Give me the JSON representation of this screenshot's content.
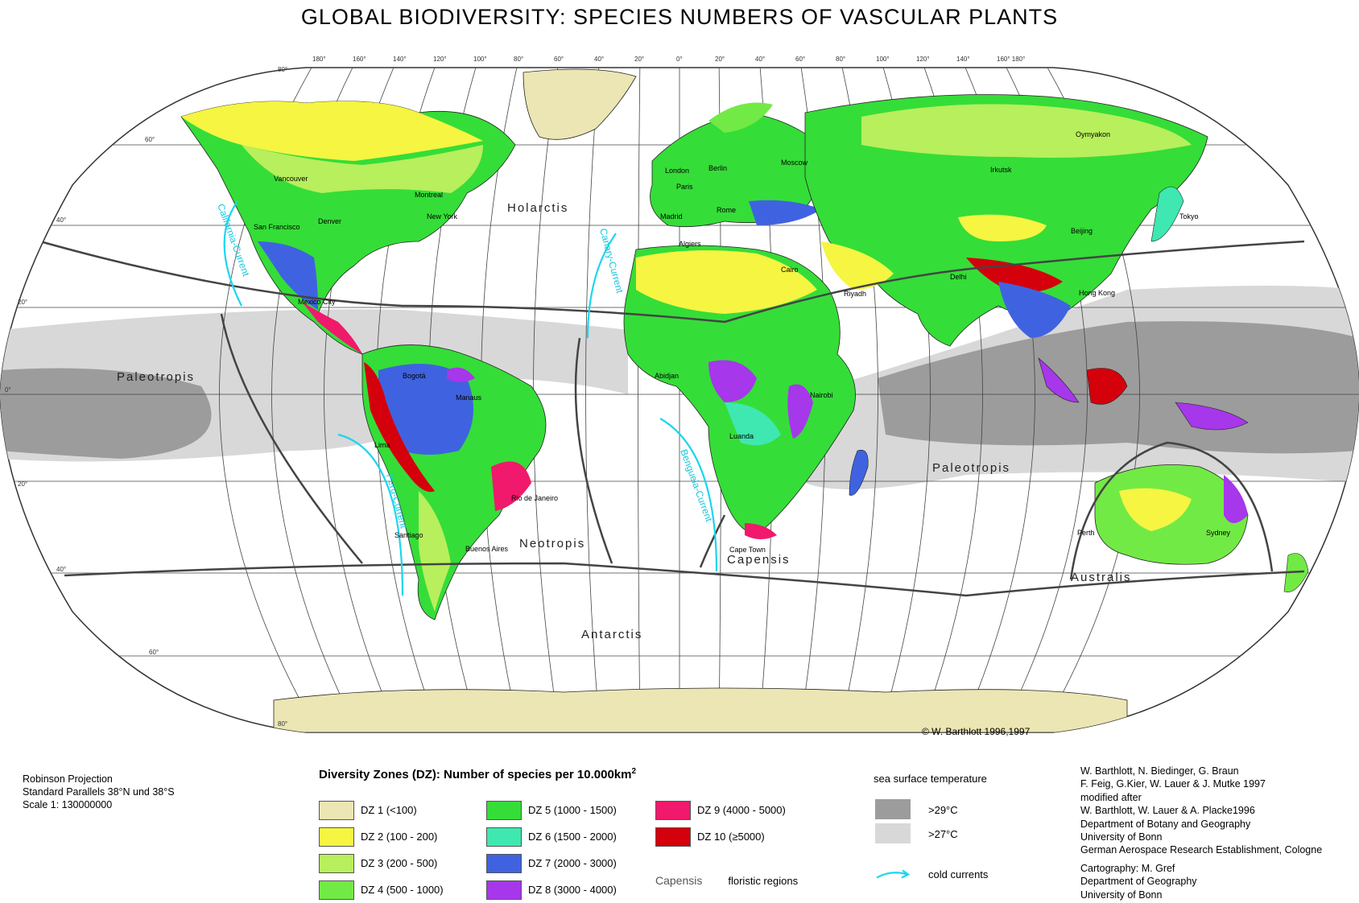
{
  "title": "GLOBAL BIODIVERSITY:  SPECIES NUMBERS OF VASCULAR PLANTS",
  "copyright": "© W. Barthlott 1996,1997",
  "projection": [
    "Robinson Projection",
    "Standard Parallels 38°N und 38°S",
    "Scale 1: 130000000"
  ],
  "legend": {
    "title": "Diversity Zones (DZ): Number of species per 10.000km",
    "title_sup": "2",
    "zones": [
      {
        "label": "DZ  1      (<100)",
        "color": "#ebe6b3"
      },
      {
        "label": "DZ  2   (100 -   200)",
        "color": "#f5f542"
      },
      {
        "label": "DZ  3   (200 -   500)",
        "color": "#b8ef5c"
      },
      {
        "label": "DZ  4   (500 - 1000)",
        "color": "#72ea45"
      },
      {
        "label": "DZ  5 (1000 - 1500)",
        "color": "#35dd38"
      },
      {
        "label": "DZ  6 (1500 - 2000)",
        "color": "#3ee8b0"
      },
      {
        "label": "DZ  7 (2000 - 3000)",
        "color": "#3f63e0"
      },
      {
        "label": "DZ  8 (3000 - 4000)",
        "color": "#a637ea"
      },
      {
        "label": "DZ  9 (4000 - 5000)",
        "color": "#f0196b"
      },
      {
        "label": "DZ 10 (≥5000)",
        "color": "#d4000c"
      }
    ],
    "capensis_word": "Capensis",
    "capensis_desc": "floristic regions",
    "sst_title": "sea surface temperature",
    "sst": [
      {
        "label": ">29°C",
        "color": "#9c9c9c"
      },
      {
        "label": ">27°C",
        "color": "#d8d8d8"
      }
    ],
    "cold_label": "cold currents",
    "cold_color": "#1ad6ef"
  },
  "credits": [
    "W. Barthlott, N. Biedinger, G. Braun",
    "F. Feig, G.Kier, W. Lauer & J. Mutke 1997",
    "modified after",
    "W. Barthlott, W. Lauer & A. Placke1996",
    "Department of Botany and Geography",
    "University of Bonn",
    "German Aerospace Research Establishment, Cologne",
    "",
    "Cartography: M. Gref",
    "Department of Geography",
    "University of Bonn"
  ],
  "regions": [
    "Holarctis",
    "Paleotropis",
    "Paleotropis",
    "Neotropis",
    "Capensis",
    "Australis",
    "Antarctis"
  ],
  "currents": [
    "California-Current",
    "Canary-Current",
    "Peru-Current",
    "Benguela-Current"
  ],
  "cities": [
    "Vancouver",
    "San Francisco",
    "Denver",
    "Montreal",
    "New York",
    "Mexico City",
    "Bogotá",
    "Manaus",
    "Lima",
    "Santiago",
    "Buenos Aires",
    "Rio de Janeiro",
    "London",
    "Berlin",
    "Paris",
    "Madrid",
    "Rome",
    "Moscow",
    "Algiers",
    "Cairo",
    "Riyadh",
    "Abidjan",
    "Nairobi",
    "Luanda",
    "Cape Town",
    "Delhi",
    "Irkutsk",
    "Oymyakon",
    "Beijing",
    "Tokyo",
    "Hong Kong",
    "Perth",
    "Sydney"
  ],
  "longitudes_top": [
    "180°",
    "160°",
    "140°",
    "120°",
    "100°",
    "80°",
    "60°",
    "40°",
    "20°",
    "0°",
    "20°",
    "40°",
    "60°",
    "80°",
    "100°",
    "120°",
    "140°",
    "160° 180°"
  ],
  "latitudes": [
    "80°",
    "60°",
    "40°",
    "20°",
    "0°",
    "20°",
    "40°",
    "60°",
    "80°"
  ]
}
